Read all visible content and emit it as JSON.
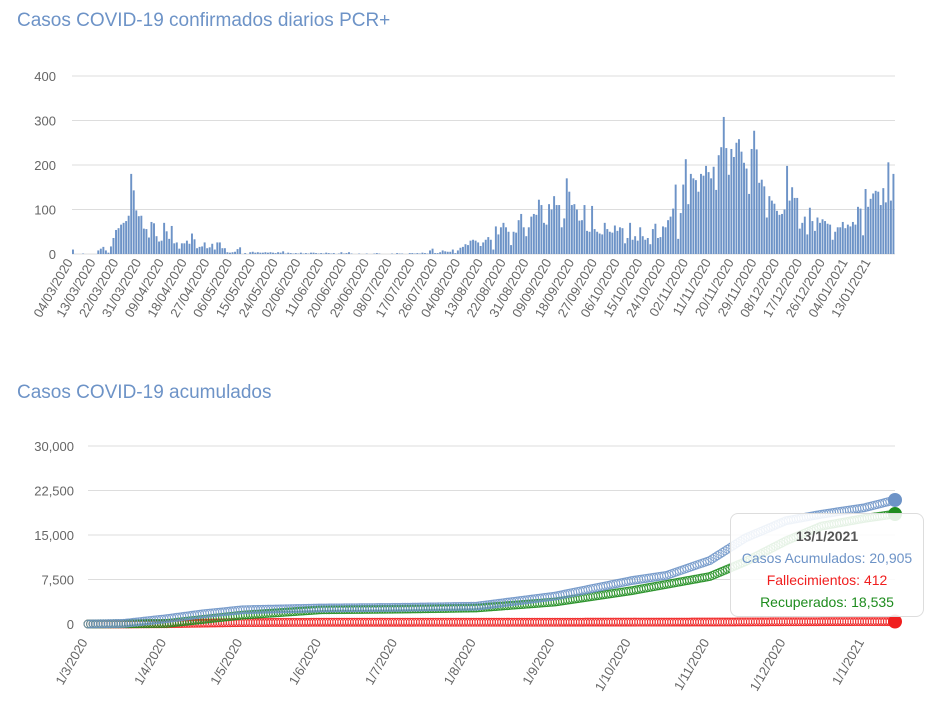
{
  "chart_data": [
    {
      "type": "bar",
      "title": "Casos COVID-19 confirmados diarios PCR+",
      "ylim": [
        0,
        400
      ],
      "yticks": [
        "0",
        "100",
        "200",
        "300",
        "400"
      ],
      "grid": true,
      "color": "#6d93c7",
      "start_date": "04/03/2020",
      "tick_labels": [
        "04/03/2020",
        "13/03/2020",
        "22/03/2020",
        "31/03/2020",
        "09/04/2020",
        "18/04/2020",
        "27/04/2020",
        "06/05/2020",
        "15/05/2020",
        "24/05/2020",
        "02/06/2020",
        "11/06/2020",
        "20/06/2020",
        "29/06/2020",
        "08/07/2020",
        "17/07/2020",
        "26/07/2020",
        "04/08/2020",
        "13/08/2020",
        "22/08/2020",
        "31/08/2020",
        "09/09/2020",
        "18/09/2020",
        "27/09/2020",
        "06/10/2020",
        "15/10/2020",
        "24/10/2020",
        "02/11/2020",
        "11/11/2020",
        "20/11/2020",
        "29/11/2020",
        "08/12/2020",
        "17/12/2020",
        "26/12/2020",
        "04/01/2021",
        "13/01/2021"
      ],
      "values": [
        10,
        0,
        0,
        0,
        1,
        0,
        0,
        0,
        0,
        0,
        8,
        12,
        16,
        8,
        3,
        17,
        36,
        54,
        58,
        66,
        70,
        74,
        86,
        180,
        143,
        98,
        85,
        86,
        57,
        56,
        37,
        72,
        69,
        40,
        28,
        30,
        70,
        51,
        34,
        63,
        24,
        26,
        12,
        24,
        24,
        30,
        23,
        46,
        33,
        13,
        16,
        17,
        26,
        13,
        15,
        23,
        10,
        26,
        26,
        13,
        13,
        4,
        3,
        4,
        5,
        11,
        15,
        0,
        2,
        0,
        4,
        5,
        3,
        4,
        3,
        3,
        4,
        3,
        4,
        3,
        2,
        4,
        3,
        6,
        1,
        3,
        2,
        1,
        2,
        1,
        3,
        1,
        2,
        1,
        3,
        3,
        2,
        1,
        2,
        1,
        3,
        2,
        1,
        2,
        0,
        1,
        4,
        1,
        2,
        4,
        1,
        0,
        0,
        1,
        0,
        0,
        1,
        0,
        0,
        1,
        2,
        1,
        0,
        0,
        0,
        0,
        1,
        0,
        2,
        1,
        1,
        0,
        0,
        2,
        2,
        1,
        2,
        1,
        3,
        2,
        1,
        8,
        12,
        2,
        2,
        4,
        8,
        6,
        5,
        5,
        10,
        2,
        8,
        14,
        16,
        22,
        20,
        30,
        32,
        30,
        26,
        18,
        26,
        32,
        38,
        32,
        10,
        62,
        44,
        60,
        70,
        60,
        50,
        20,
        50,
        48,
        76,
        90,
        60,
        40,
        60,
        84,
        90,
        88,
        122,
        110,
        70,
        66,
        112,
        100,
        130,
        110,
        110,
        60,
        80,
        170,
        140,
        110,
        112,
        100,
        75,
        76,
        110,
        52,
        50,
        108,
        56,
        50,
        46,
        44,
        70,
        56,
        50,
        48,
        64,
        52,
        60,
        58,
        24,
        36,
        70,
        32,
        40,
        30,
        60,
        40,
        32,
        36,
        22,
        56,
        68,
        36,
        38,
        62,
        60,
        76,
        84,
        102,
        156,
        34,
        92,
        156,
        213,
        112,
        180,
        170,
        166,
        140,
        180,
        176,
        198,
        184,
        170,
        196,
        144,
        222,
        240,
        308,
        238,
        178,
        236,
        218,
        250,
        258,
        230,
        205,
        192,
        135,
        236,
        277,
        235,
        160,
        167,
        152,
        82,
        130,
        120,
        113,
        97,
        88,
        90,
        100,
        198,
        120,
        150,
        126,
        126,
        57,
        70,
        84,
        44,
        104,
        74,
        52,
        82,
        70,
        78,
        74,
        68,
        66,
        32,
        50,
        60,
        60,
        72,
        58,
        66,
        62,
        72,
        66,
        106,
        102,
        42,
        146,
        106,
        124,
        136,
        142,
        140,
        110,
        148,
        116,
        206,
        120,
        180
      ]
    },
    {
      "type": "line",
      "title": "Casos COVID-19 acumulados",
      "ylim": [
        0,
        30000
      ],
      "yticks": [
        "0",
        "7,500",
        "15,000",
        "22,500",
        "30,000"
      ],
      "xticks": [
        "1/3/2020",
        "1/4/2020",
        "1/5/2020",
        "1/6/2020",
        "1/7/2020",
        "1/8/2020",
        "1/9/2020",
        "1/10/2020",
        "1/11/2020",
        "1/12/2020",
        "1/1/2021"
      ],
      "xlim": [
        "1/3/2020",
        "13/1/2021"
      ],
      "grid": true,
      "series": [
        {
          "name": "Casos Acumulados",
          "color": "#6d93c7",
          "points": [
            [
              "1/3/2020",
              0
            ],
            [
              "15/3/2020",
              100
            ],
            [
              "1/4/2020",
              900
            ],
            [
              "15/4/2020",
              1700
            ],
            [
              "1/5/2020",
              2400
            ],
            [
              "1/6/2020",
              2700
            ],
            [
              "1/7/2020",
              2800
            ],
            [
              "1/8/2020",
              3000
            ],
            [
              "1/9/2020",
              4700
            ],
            [
              "1/10/2020",
              7300
            ],
            [
              "15/10/2020",
              8200
            ],
            [
              "1/11/2020",
              10700
            ],
            [
              "15/11/2020",
              14500
            ],
            [
              "1/12/2020",
              17400
            ],
            [
              "15/12/2020",
              18500
            ],
            [
              "1/1/2021",
              19600
            ],
            [
              "13/1/2021",
              20905
            ]
          ]
        },
        {
          "name": "Fallecimientos",
          "color": "#f01e1e",
          "points": [
            [
              "1/3/2020",
              0
            ],
            [
              "15/3/2020",
              0
            ],
            [
              "1/4/2020",
              50
            ],
            [
              "1/5/2020",
              250
            ],
            [
              "1/6/2020",
              290
            ],
            [
              "1/9/2020",
              300
            ],
            [
              "1/11/2020",
              330
            ],
            [
              "1/12/2020",
              380
            ],
            [
              "13/1/2021",
              412
            ]
          ]
        },
        {
          "name": "Recuperados",
          "color": "#1e8c1e",
          "points": [
            [
              "1/3/2020",
              0
            ],
            [
              "1/4/2020",
              100
            ],
            [
              "1/5/2020",
              1500
            ],
            [
              "1/6/2020",
              2400
            ],
            [
              "1/7/2020",
              2500
            ],
            [
              "1/8/2020",
              2700
            ],
            [
              "1/9/2020",
              3700
            ],
            [
              "1/10/2020",
              5600
            ],
            [
              "1/11/2020",
              8000
            ],
            [
              "15/11/2020",
              10500
            ],
            [
              "1/12/2020",
              14000
            ],
            [
              "15/12/2020",
              16500
            ],
            [
              "1/1/2021",
              17800
            ],
            [
              "13/1/2021",
              18535
            ]
          ]
        }
      ],
      "tooltip": {
        "date": "13/1/2021",
        "cases": "Casos Acumulados: 20,905",
        "deaths": "Fallecimientos: 412",
        "recovered": "Recuperados: 18,535"
      }
    }
  ]
}
